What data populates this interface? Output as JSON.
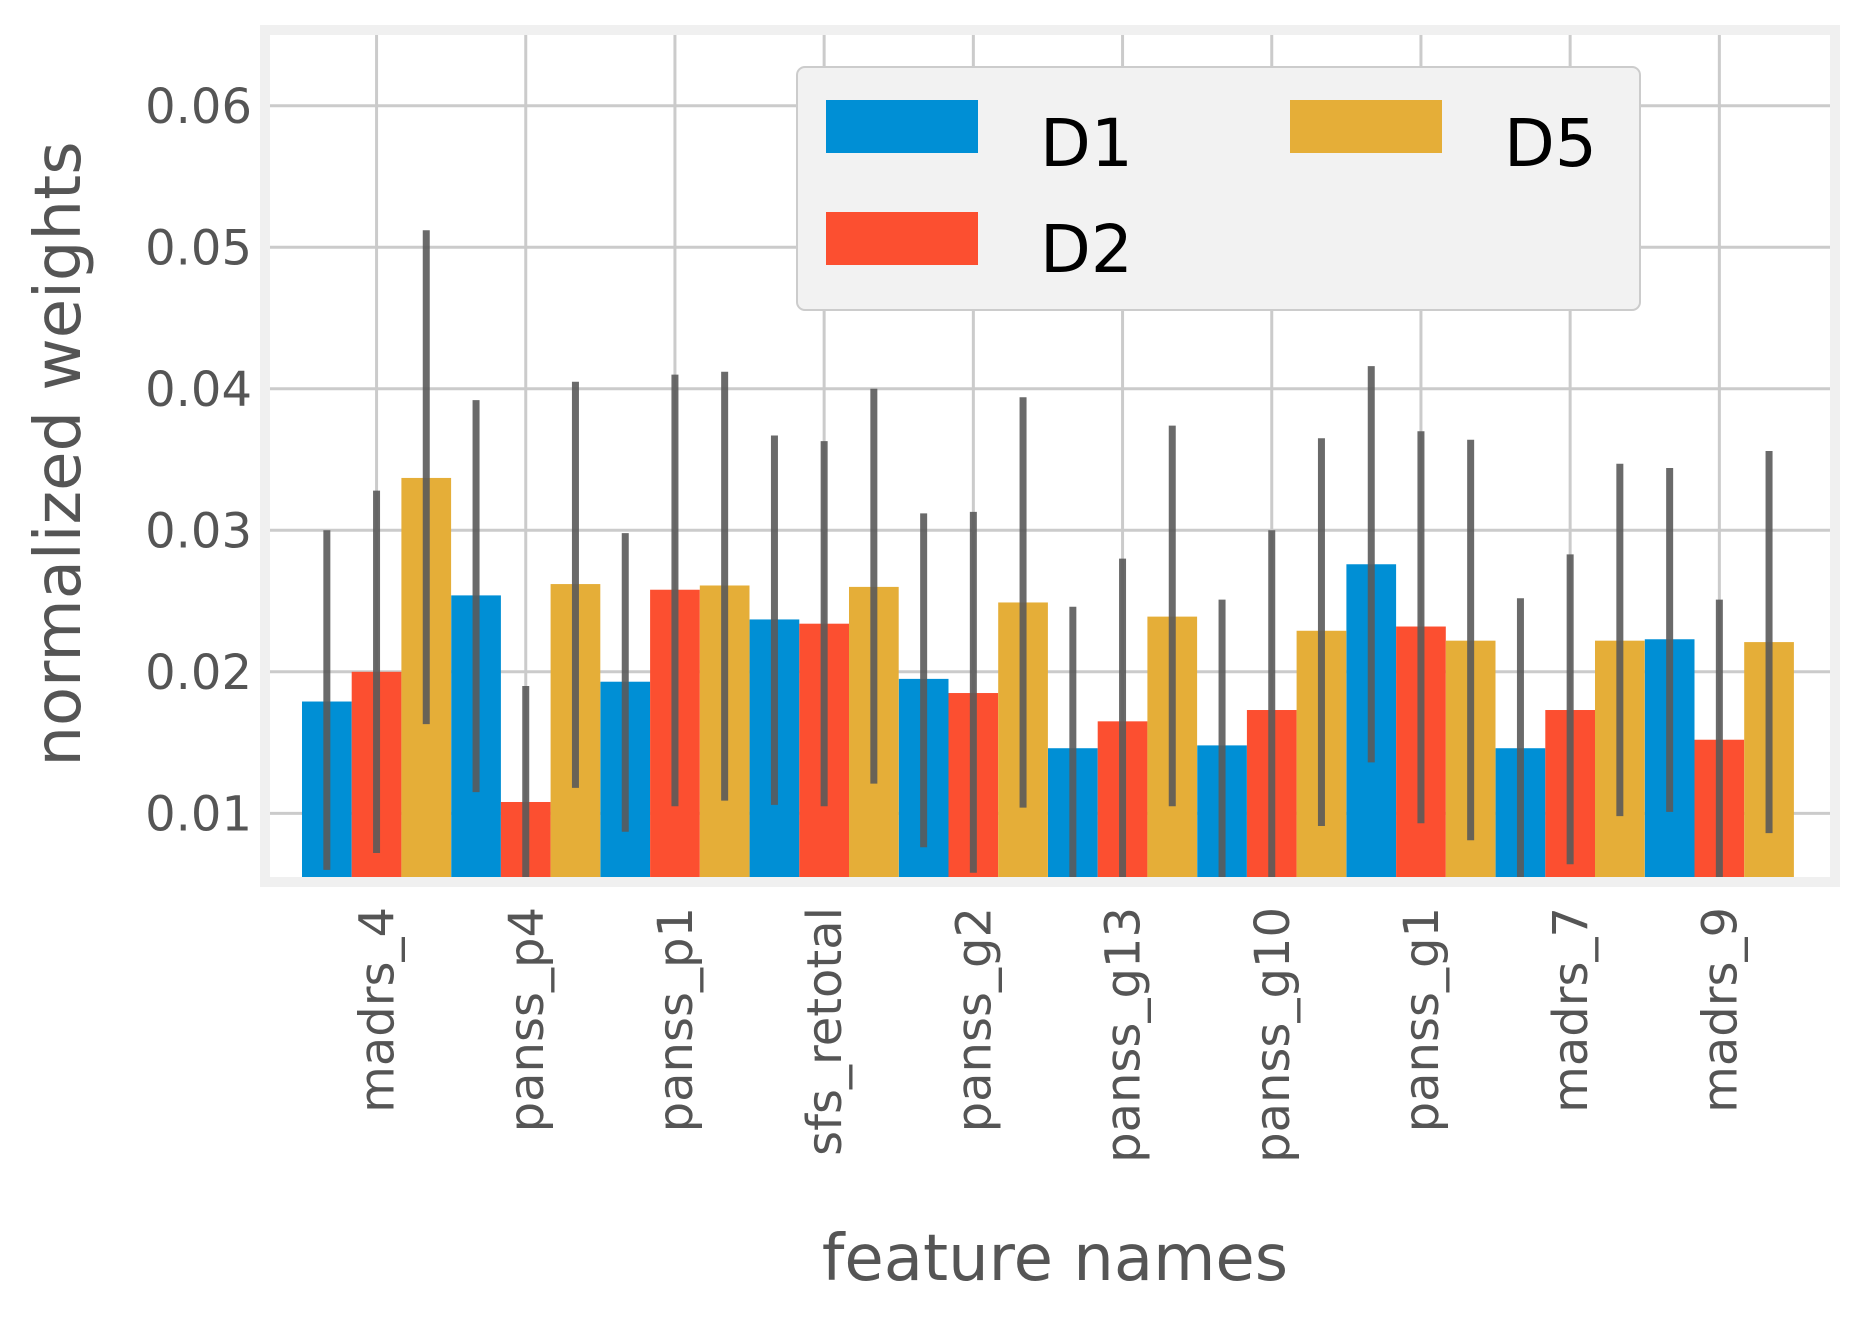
{
  "chart_data": {
    "type": "bar",
    "title": "",
    "xlabel": "feature names",
    "ylabel": "normalized weights",
    "ylim": [
      0.0055,
      0.065
    ],
    "yticks": [
      "0.01",
      "0.02",
      "0.03",
      "0.04",
      "0.05",
      "0.06"
    ],
    "grid": true,
    "legend_position": "top-right",
    "legend_columns": 2,
    "categories": [
      "madrs_4",
      "panss_p4",
      "panss_p1",
      "sfs_retotal",
      "panss_g2",
      "panss_g13",
      "panss_g10",
      "panss_g1",
      "madrs_7",
      "madrs_9"
    ],
    "series": [
      {
        "name": "D1",
        "color": "#008fd5",
        "values": [
          0.0179,
          0.0254,
          0.0193,
          0.0237,
          0.0195,
          0.0146,
          0.0148,
          0.0276,
          0.0146,
          0.0223
        ],
        "err_low": [
          0.006,
          0.0115,
          0.0087,
          0.0106,
          0.0076,
          0.0046,
          0.0045,
          0.0136,
          0.004,
          0.0101
        ],
        "err_high": [
          0.03,
          0.0392,
          0.0298,
          0.0367,
          0.0312,
          0.0246,
          0.0251,
          0.0416,
          0.0252,
          0.0344
        ]
      },
      {
        "name": "D2",
        "color": "#fc4f30",
        "values": [
          0.02,
          0.0108,
          0.0258,
          0.0234,
          0.0185,
          0.0165,
          0.0173,
          0.0232,
          0.0173,
          0.0152
        ],
        "err_low": [
          0.0072,
          0.0027,
          0.0105,
          0.0105,
          0.0058,
          0.005,
          0.0043,
          0.0093,
          0.0064,
          0.0043
        ],
        "err_high": [
          0.0328,
          0.019,
          0.041,
          0.0363,
          0.0313,
          0.028,
          0.03,
          0.037,
          0.0283,
          0.0251
        ]
      },
      {
        "name": "D5",
        "color": "#e5ae38",
        "values": [
          0.0337,
          0.0262,
          0.0261,
          0.026,
          0.0249,
          0.0239,
          0.0229,
          0.0222,
          0.0222,
          0.0221
        ],
        "err_low": [
          0.0163,
          0.0118,
          0.0109,
          0.0121,
          0.0104,
          0.0105,
          0.0091,
          0.0081,
          0.0098,
          0.0086
        ],
        "err_high": [
          0.0512,
          0.0405,
          0.0412,
          0.04,
          0.0394,
          0.0374,
          0.0365,
          0.0364,
          0.0347,
          0.0356
        ]
      }
    ]
  }
}
